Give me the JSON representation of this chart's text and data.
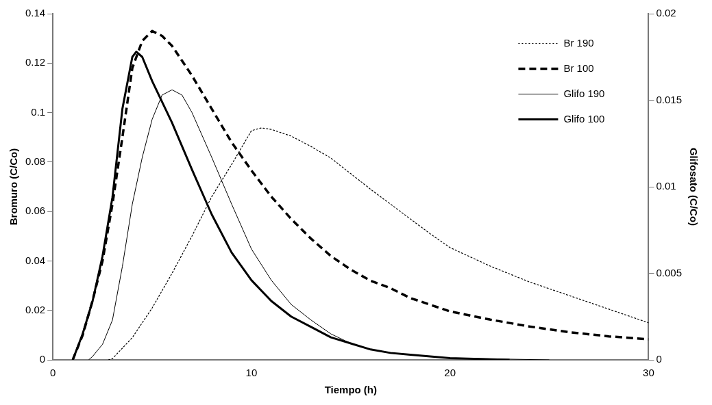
{
  "chart_data": {
    "type": "line",
    "xlabel": "Tiempo (h)",
    "ylabel": "Bromuro (C/Co)",
    "y2label": "Glifosato (C/Co)",
    "xlim": [
      0,
      30
    ],
    "xticks": [
      0,
      10,
      20,
      30
    ],
    "ylim": [
      0,
      0.14
    ],
    "yticks": [
      0,
      0.02,
      0.04,
      0.06,
      0.08,
      0.1,
      0.12,
      0.14
    ],
    "y2lim": [
      0,
      0.02
    ],
    "y2ticks": [
      0,
      0.005,
      0.01,
      0.015,
      0.02
    ],
    "grid": false,
    "legend": "top right",
    "marker": "none",
    "series": [
      {
        "name": "Br 190",
        "color": "#000000",
        "line_style": "dotted",
        "x": [
          2.8,
          3,
          4,
          5,
          6,
          7,
          8,
          9,
          10,
          10.5,
          11,
          12,
          13,
          14,
          15,
          16,
          17,
          18,
          19,
          20,
          22,
          24,
          26,
          28,
          30
        ],
        "values": [
          0,
          0.0005,
          0.009,
          0.021,
          0.035,
          0.05,
          0.066,
          0.079,
          0.0927,
          0.0938,
          0.0932,
          0.0905,
          0.0863,
          0.0816,
          0.0753,
          0.069,
          0.063,
          0.057,
          0.051,
          0.0454,
          0.038,
          0.0315,
          0.026,
          0.0205,
          0.015
        ]
      },
      {
        "name": "Br 100",
        "color": "#000000",
        "line_style": "dashed",
        "x": [
          1,
          1.5,
          2,
          2.5,
          3,
          3.5,
          4,
          4.5,
          5,
          5.5,
          6,
          7,
          8,
          9,
          10,
          11,
          12,
          13,
          14,
          15,
          16,
          17,
          18,
          20,
          22,
          24,
          26,
          28,
          30
        ],
        "values": [
          0,
          0.01,
          0.024,
          0.04,
          0.063,
          0.09,
          0.118,
          0.129,
          0.133,
          0.131,
          0.127,
          0.115,
          0.1015,
          0.088,
          0.0766,
          0.066,
          0.057,
          0.049,
          0.042,
          0.0365,
          0.032,
          0.029,
          0.025,
          0.0196,
          0.0163,
          0.0135,
          0.0112,
          0.0095,
          0.0083
        ]
      },
      {
        "name": "Glifo 190",
        "color": "#000000",
        "line_style": "solid",
        "axis": "y2",
        "x": [
          1.8,
          2,
          2.5,
          3,
          3.5,
          4,
          4.5,
          5,
          5.5,
          6,
          6.5,
          7,
          8,
          9,
          10,
          11,
          12,
          13,
          14,
          15,
          16,
          17,
          18,
          19,
          20,
          25
        ],
        "values": [
          0,
          0.0002,
          0.0009,
          0.0023,
          0.0054,
          0.009,
          0.0117,
          0.0139,
          0.0153,
          0.0156,
          0.0153,
          0.0143,
          0.0117,
          0.009,
          0.0064,
          0.0046,
          0.0032,
          0.0023,
          0.0015,
          0.00095,
          0.0006,
          0.0004,
          0.0003,
          0.0002,
          0.0001,
          0
        ]
      },
      {
        "name": "Glifo 100",
        "color": "#000000",
        "line_style": "solid",
        "axis": "y2",
        "x": [
          1,
          1.5,
          2,
          2.5,
          3,
          3.5,
          4,
          4.2,
          4.5,
          5,
          6,
          7,
          8,
          9,
          10,
          11,
          12,
          13,
          14,
          15,
          16,
          17,
          18,
          19,
          20,
          23
        ],
        "values": [
          0,
          0.0015,
          0.0034,
          0.006,
          0.0094,
          0.0145,
          0.0175,
          0.0178,
          0.0175,
          0.0161,
          0.0137,
          0.011,
          0.0084,
          0.0062,
          0.0046,
          0.0034,
          0.0025,
          0.0019,
          0.0013,
          0.00095,
          0.0006,
          0.0004,
          0.0003,
          0.0002,
          0.0001,
          0
        ]
      }
    ]
  }
}
